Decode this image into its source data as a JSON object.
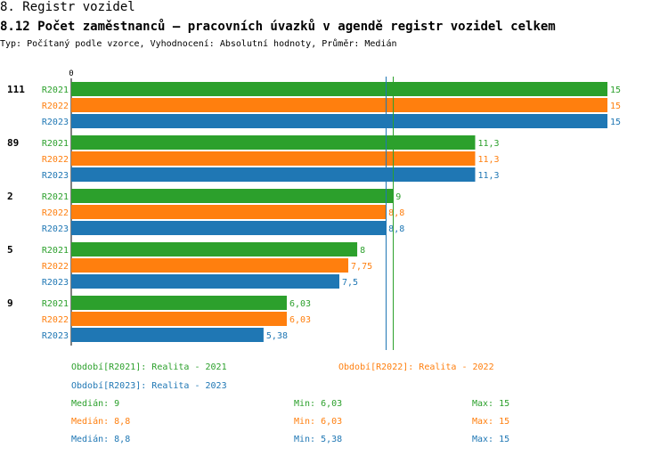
{
  "header": {
    "title": "8. Registr vozidel",
    "subtitle": "8.12 Počet zaměstnanců – pracovních úvazků v agendě registr vozidel celkem",
    "type_line": "Typ: Počítaný podle vzorce, Vyhodnocení: Absolutní hodnoty, Průměr: Medián"
  },
  "colors": {
    "R2021": "#2ca02c",
    "R2022": "#ff7f0e",
    "R2023": "#1f77b4"
  },
  "chart_data": {
    "type": "bar",
    "orientation": "horizontal",
    "axis_zero_label": "0",
    "xlim": [
      0,
      15
    ],
    "groups": [
      {
        "label": "111",
        "bars": [
          {
            "series": "R2021",
            "value": 15,
            "label": "15"
          },
          {
            "series": "R2022",
            "value": 15,
            "label": "15"
          },
          {
            "series": "R2023",
            "value": 15,
            "label": "15"
          }
        ]
      },
      {
        "label": "89",
        "bars": [
          {
            "series": "R2021",
            "value": 11.3,
            "label": "11,3"
          },
          {
            "series": "R2022",
            "value": 11.3,
            "label": "11,3"
          },
          {
            "series": "R2023",
            "value": 11.3,
            "label": "11,3"
          }
        ]
      },
      {
        "label": "2",
        "bars": [
          {
            "series": "R2021",
            "value": 9,
            "label": "9"
          },
          {
            "series": "R2022",
            "value": 8.8,
            "label": "8,8"
          },
          {
            "series": "R2023",
            "value": 8.8,
            "label": "8,8"
          }
        ]
      },
      {
        "label": "5",
        "bars": [
          {
            "series": "R2021",
            "value": 8,
            "label": "8"
          },
          {
            "series": "R2022",
            "value": 7.75,
            "label": "7,75"
          },
          {
            "series": "R2023",
            "value": 7.5,
            "label": "7,5"
          }
        ]
      },
      {
        "label": "9",
        "bars": [
          {
            "series": "R2021",
            "value": 6.03,
            "label": "6,03"
          },
          {
            "series": "R2022",
            "value": 6.03,
            "label": "6,03"
          },
          {
            "series": "R2023",
            "value": 5.38,
            "label": "5,38"
          }
        ]
      }
    ],
    "median_lines": [
      {
        "series": "R2021",
        "value": 9
      },
      {
        "series": "R2022",
        "value": 8.8
      },
      {
        "series": "R2023",
        "value": 8.8
      }
    ]
  },
  "legend": {
    "r2021": "Období[R2021]: Realita - 2021",
    "r2022": "Období[R2022]: Realita - 2022",
    "r2023": "Období[R2023]: Realita - 2023"
  },
  "stats": [
    {
      "series": "R2021",
      "median": "Medián: 9",
      "min": "Min: 6,03",
      "max": "Max: 15"
    },
    {
      "series": "R2022",
      "median": "Medián: 8,8",
      "min": "Min: 6,03",
      "max": "Max: 15"
    },
    {
      "series": "R2023",
      "median": "Medián: 8,8",
      "min": "Min: 5,38",
      "max": "Max: 15"
    }
  ]
}
